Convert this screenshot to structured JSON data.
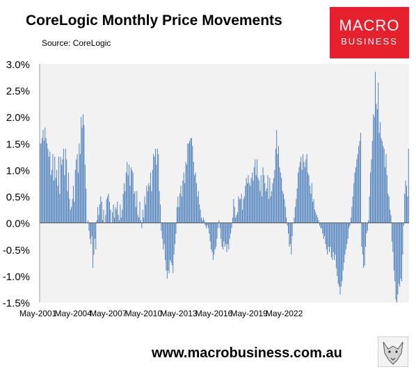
{
  "header": {
    "title": "CoreLogic Monthly Price Movements",
    "subtitle": "Source: CoreLogic"
  },
  "logo": {
    "line1": "MACRO",
    "line2": "BUSINESS"
  },
  "footer": {
    "url": "www.macrobusiness.com.au"
  },
  "colors": {
    "bar": "#4f81bd",
    "plot_bg": "#f2f2f2",
    "logo_bg": "#e6202c"
  },
  "chart_data": {
    "type": "bar",
    "title": "CoreLogic Monthly Price Movements",
    "ylim": [
      -1.5,
      3.0
    ],
    "y_ticks": [
      "3.0%",
      "2.5%",
      "2.0%",
      "1.5%",
      "1.0%",
      "0.5%",
      "0.0%",
      "-0.5%",
      "-1.0%",
      "-1.5%"
    ],
    "x_ticks": [
      "May-2001",
      "May-2004",
      "May-2007",
      "May-2010",
      "May-2013",
      "May-2016",
      "May-2019",
      "May-2022"
    ],
    "x_start": "2001-01",
    "x_end": "2023-03",
    "grid": false,
    "values": [
      1.5,
      1.5,
      1.6,
      1.75,
      1.55,
      1.8,
      1.6,
      1.5,
      1.4,
      1.25,
      1.35,
      0.9,
      1.0,
      1.3,
      0.8,
      1.25,
      0.85,
      1.0,
      0.7,
      1.25,
      0.55,
      1.25,
      1.1,
      1.2,
      1.4,
      0.9,
      1.4,
      1.2,
      0.6,
      0.95,
      0.45,
      0.25,
      0.3,
      0.45,
      0.7,
      0.4,
      1.0,
      1.2,
      1.3,
      0.95,
      1.5,
      1.3,
      2.0,
      1.8,
      2.05,
      1.85,
      1.1,
      0.65,
      0.0,
      0.05,
      -0.15,
      -0.3,
      -0.4,
      -0.25,
      -0.85,
      -0.6,
      -0.3,
      -0.5,
      0.05,
      0.3,
      0.15,
      0.35,
      0.5,
      0.4,
      0.05,
      0.25,
      0.0,
      0.15,
      0.45,
      0.5,
      0.55,
      0.4,
      0.25,
      0.0,
      0.2,
      0.35,
      0.1,
      0.3,
      0.25,
      0.4,
      0.15,
      0.05,
      0.35,
      0.1,
      0.25,
      0.55,
      0.75,
      0.6,
      0.95,
      1.15,
      0.9,
      1.1,
      0.7,
      1.05,
      1.0,
      0.95,
      0.55,
      0.6,
      0.3,
      0.6,
      0.15,
      0.1,
      0.4,
      0.05,
      -0.1,
      0.25,
      0.1,
      0.5,
      0.35,
      0.7,
      0.6,
      0.75,
      0.7,
      0.95,
      0.6,
      1.0,
      1.3,
      1.25,
      1.4,
      1.1,
      1.4,
      1.3,
      0.6,
      0.35,
      -0.15,
      -0.3,
      -0.5,
      -0.4,
      -0.7,
      -0.9,
      -1.05,
      -0.9,
      -0.95,
      -0.7,
      -0.75,
      -0.8,
      -0.95,
      -0.6,
      -0.4,
      -0.2,
      0.3,
      0.5,
      0.3,
      0.55,
      0.7,
      0.5,
      0.8,
      0.95,
      0.75,
      1.15,
      1.1,
      1.5,
      1.5,
      1.55,
      1.6,
      1.6,
      1.45,
      1.15,
      0.9,
      0.95,
      0.75,
      0.5,
      0.6,
      0.35,
      0.25,
      0.1,
      0.05,
      0.1,
      0.05,
      -0.05,
      -0.1,
      -0.05,
      -0.1,
      -0.2,
      -0.35,
      -0.5,
      -0.55,
      -0.7,
      -0.6,
      -0.5,
      -0.45,
      -0.3,
      -0.1,
      0.05,
      -0.1,
      -0.3,
      -0.45,
      -0.5,
      -0.35,
      -0.45,
      -0.4,
      -0.55,
      -0.4,
      -0.5,
      -0.3,
      -0.2,
      -0.1,
      0.1,
      0.45,
      0.3,
      0.1,
      0.15,
      0.2,
      0.5,
      0.45,
      0.45,
      0.55,
      0.25,
      0.45,
      0.5,
      0.7,
      0.85,
      0.75,
      0.9,
      0.75,
      0.7,
      0.85,
      0.95,
      0.8,
      1.05,
      1.2,
      0.9,
      1.2,
      0.85,
      0.8,
      0.6,
      0.9,
      0.5,
      1.05,
      0.9,
      0.75,
      0.6,
      0.65,
      0.9,
      0.45,
      0.85,
      0.5,
      0.6,
      0.75,
      0.85,
      1.0,
      1.4,
      1.75,
      1.3,
      1.45,
      1.05,
      0.95,
      0.85,
      0.6,
      0.55,
      0.45,
      0.3,
      0.1,
      -0.05,
      -0.2,
      -0.45,
      -0.4,
      -0.6,
      -0.25,
      0.0,
      0.1,
      0.3,
      0.45,
      0.65,
      0.95,
      1.05,
      1.15,
      1.25,
      1.0,
      1.3,
      1.15,
      1.05,
      1.2,
      1.3,
      0.95,
      0.9,
      0.7,
      0.55,
      0.75,
      0.4,
      0.45,
      0.25,
      0.2,
      0.15,
      0.1,
      0.05,
      -0.05,
      -0.1,
      -0.1,
      -0.2,
      -0.3,
      -0.25,
      -0.4,
      -0.5,
      -0.6,
      -0.45,
      -0.55,
      -0.45,
      -0.65,
      -0.7,
      -0.55,
      -0.7,
      -0.6,
      -0.85,
      -1.0,
      -1.15,
      -1.2,
      -1.35,
      -1.2,
      -1.1,
      -0.9,
      -0.75,
      -0.6,
      -0.5,
      -0.4,
      -0.3,
      -0.1,
      -0.05,
      0.1,
      0.3,
      0.5,
      0.75,
      0.95,
      1.05,
      1.2,
      1.3,
      1.45,
      1.55,
      1.7,
      -0.45,
      -0.6,
      -0.85,
      -0.8,
      -0.45,
      -0.2,
      -0.15,
      0.05,
      0.5,
      0.95,
      1.2,
      1.55,
      2.05,
      2.0,
      2.85,
      2.25,
      2.15,
      2.65,
      1.7,
      1.9,
      1.6,
      1.55,
      1.45,
      1.4,
      1.05,
      1.3,
      0.9,
      0.55,
      0.5,
      0.25,
      0.15,
      -0.35,
      -0.55,
      -0.9,
      -1.1,
      -1.45,
      -1.5,
      -1.35,
      -1.15,
      -1.2,
      -1.05,
      -1.1,
      -0.6,
      -0.05,
      0.55,
      0.8,
      0.7,
      0.5,
      1.4
    ]
  }
}
